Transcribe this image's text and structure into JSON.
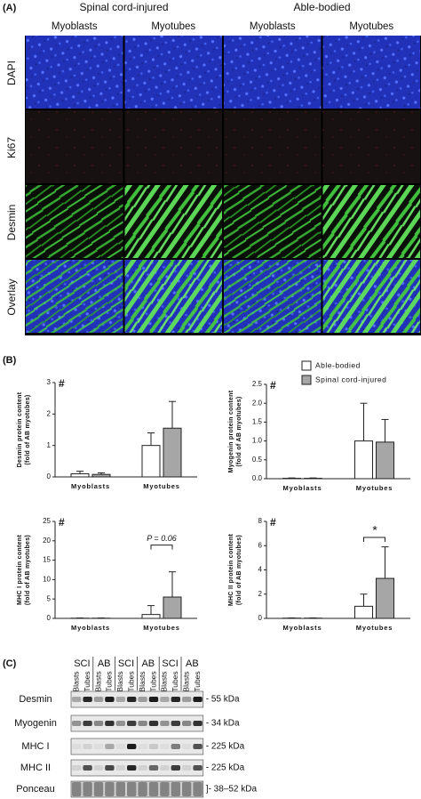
{
  "panel_a": {
    "label": "(A)",
    "groups": [
      "Spinal cord-injured",
      "Able-bodied"
    ],
    "columns": [
      "Myoblasts",
      "Myotubes",
      "Myoblasts",
      "Myotubes"
    ],
    "rows": [
      "DAPI",
      "Ki67",
      "Desmin",
      "Overlay"
    ]
  },
  "panel_b": {
    "label": "(B)"
  },
  "chart_data": [
    {
      "type": "bar",
      "ylabel": [
        "Desmin protein content",
        "(fold of AB myotubes)"
      ],
      "annotation": "#",
      "categories": [
        "Myoblasts",
        "Myotubes"
      ],
      "series": [
        {
          "color": "#ffffff",
          "values": [
            0.1,
            1.0
          ],
          "errors": [
            0.08,
            0.4
          ]
        },
        {
          "color": "#a6a6a6",
          "values": [
            0.08,
            1.55
          ],
          "errors": [
            0.05,
            0.85
          ]
        }
      ],
      "ylim": [
        0,
        3
      ],
      "yticks": [
        0,
        1,
        2,
        3
      ]
    },
    {
      "type": "bar",
      "ylabel": [
        "Myogenin protein content",
        "(fold of AB myotubes)"
      ],
      "annotation": "#",
      "categories": [
        "Myoblasts",
        "Myotubes"
      ],
      "series": [
        {
          "name": "Able-bodied",
          "color": "#ffffff",
          "values": [
            0.01,
            1.0
          ],
          "errors": [
            0.01,
            1.0
          ]
        },
        {
          "name": "Spinal cord-injured",
          "color": "#a6a6a6",
          "values": [
            0.01,
            0.97
          ],
          "errors": [
            0.01,
            0.6
          ]
        }
      ],
      "ylim": [
        0,
        2.5
      ],
      "yticks": [
        {
          "value": 0,
          "label": "0.0"
        },
        0.5,
        {
          "value": 1,
          "label": "1.0"
        },
        1.5,
        {
          "value": 2,
          "label": "2.0"
        },
        2.5
      ]
    },
    {
      "type": "bar",
      "ylabel": [
        "MHC I protein content",
        "(fold of AB myotubes)"
      ],
      "annotation": "#",
      "significance": "P = 0.06",
      "categories": [
        "Myoblasts",
        "Myotubes"
      ],
      "series": [
        {
          "color": "#ffffff",
          "values": [
            0.05,
            1.0
          ],
          "errors": [
            0.05,
            2.3
          ]
        },
        {
          "color": "#a6a6a6",
          "values": [
            0.05,
            5.5
          ],
          "errors": [
            0.05,
            6.5
          ]
        }
      ],
      "ylim": [
        0,
        25
      ],
      "yticks": [
        0,
        5,
        10,
        15,
        20,
        25
      ]
    },
    {
      "type": "bar",
      "ylabel": [
        "MHC II protein content",
        "(fold of AB myotubes)"
      ],
      "annotation": "#",
      "significance": "*",
      "categories": [
        "Myoblasts",
        "Myotubes"
      ],
      "series": [
        {
          "color": "#ffffff",
          "values": [
            0.02,
            1.0
          ],
          "errors": [
            0.02,
            1.0
          ]
        },
        {
          "color": "#a6a6a6",
          "values": [
            0.02,
            3.3
          ],
          "errors": [
            0.02,
            2.6
          ]
        }
      ],
      "ylim": [
        0,
        8
      ],
      "yticks": [
        0,
        2,
        4,
        6,
        8
      ]
    }
  ],
  "panel_c": {
    "label": "(C)",
    "groups": [
      "SCI",
      "AB",
      "SCI",
      "AB",
      "SCI",
      "AB"
    ],
    "lanes": [
      "Blasts",
      "Tubes",
      "Blasts",
      "Tubes",
      "Blasts",
      "Tubes",
      "Blasts",
      "Tubes",
      "Blasts",
      "Tubes",
      "Blasts",
      "Tubes"
    ],
    "rows": [
      "Desmin",
      "Myogenin",
      "MHC I",
      "MHC II",
      "Ponceau"
    ],
    "sizes": [
      "- 55 kDa",
      "- 34 kDa",
      "- 225 kDa",
      "- 225 kDa",
      "]- 38–52 kDa"
    ]
  }
}
